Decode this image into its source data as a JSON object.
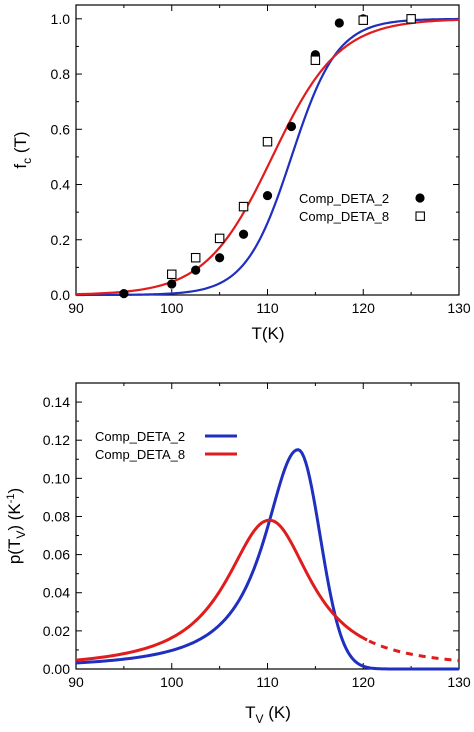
{
  "chart_data": [
    {
      "type": "scatter",
      "xlabel": "T(K)",
      "ylabel_main": "f",
      "ylabel_sub": "c",
      "ylabel_tail": " (T)",
      "xlim": [
        90,
        130
      ],
      "ylim": [
        0,
        1.05
      ],
      "xticks": [
        "90",
        "100",
        "110",
        "120",
        "130"
      ],
      "yticks": [
        "0.0",
        "0.2",
        "0.4",
        "0.6",
        "0.8",
        "1.0"
      ],
      "legend_position": "center-right",
      "series": [
        {
          "name": "Comp_DETA_2",
          "marker": "filled-circle",
          "color": "#000000",
          "fit_color": "#1f2fbf",
          "fit": {
            "t0": 112.5,
            "w": 2.4
          },
          "points": [
            [
              95,
              0.005
            ],
            [
              100,
              0.04
            ],
            [
              102.5,
              0.09
            ],
            [
              105,
              0.135
            ],
            [
              107.5,
              0.22
            ],
            [
              110,
              0.36
            ],
            [
              112.5,
              0.61
            ],
            [
              115,
              0.87
            ],
            [
              117.5,
              0.985
            ],
            [
              120,
              1.0
            ]
          ]
        },
        {
          "name": "Comp_DETA_8",
          "marker": "open-square",
          "color": "#000000",
          "fit_color": "#e01c1c",
          "fit": {
            "t0": 110.5,
            "w": 3.5
          },
          "points": [
            [
              100,
              0.075
            ],
            [
              102.5,
              0.135
            ],
            [
              105,
              0.205
            ],
            [
              107.5,
              0.32
            ],
            [
              110,
              0.555
            ],
            [
              115,
              0.85
            ],
            [
              120,
              0.995
            ],
            [
              125,
              1.0
            ]
          ]
        }
      ]
    },
    {
      "type": "line",
      "xlabel_main": "T",
      "xlabel_sub": "V",
      "xlabel_tail": " (K)",
      "ylabel": "p(T_V) (K^-1)",
      "ylabel_parts": [
        "p(T",
        "V",
        ") (K",
        "-1",
        ")"
      ],
      "xlim": [
        90,
        130
      ],
      "ylim": [
        0,
        0.15
      ],
      "xticks": [
        "90",
        "100",
        "110",
        "120",
        "130"
      ],
      "yticks": [
        "0.00",
        "0.02",
        "0.04",
        "0.06",
        "0.08",
        "0.10",
        "0.12",
        "0.14"
      ],
      "legend_position": "top-left",
      "series": [
        {
          "name": "Comp_DETA_2",
          "color": "#1f2fbf",
          "peak_x": 113.2,
          "peak_y": 0.115,
          "width_left": 3.6,
          "width_right": 2.3
        },
        {
          "name": "Comp_DETA_8",
          "color": "#e01c1c",
          "peak_x": 110.2,
          "peak_y": 0.078,
          "width_left": 4.6,
          "width_right": 4.4,
          "dashed_from": 120.5
        }
      ]
    }
  ]
}
